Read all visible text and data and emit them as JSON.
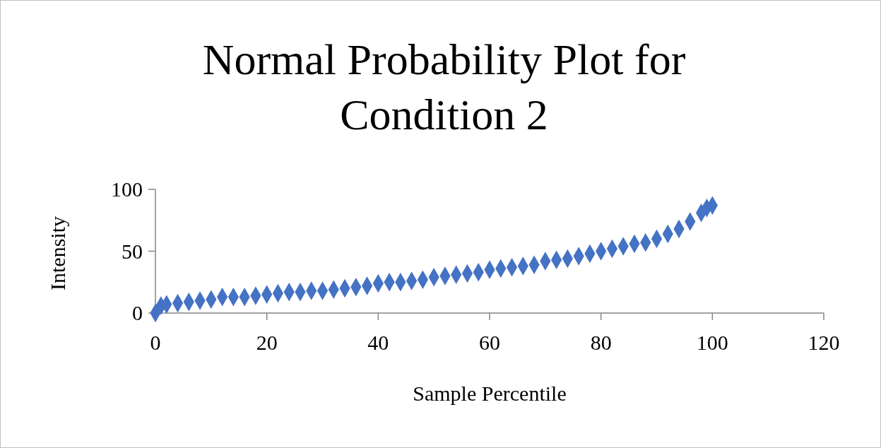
{
  "chart_data": {
    "type": "scatter",
    "title": "Normal Probability Plot for Condition 2",
    "xlabel": "Sample Percentile",
    "ylabel": "Intensity",
    "x": [
      0,
      1,
      2,
      4,
      6,
      8,
      10,
      12,
      14,
      16,
      18,
      20,
      22,
      24,
      26,
      28,
      30,
      32,
      34,
      36,
      38,
      40,
      42,
      44,
      46,
      48,
      50,
      52,
      54,
      56,
      58,
      60,
      62,
      64,
      66,
      68,
      70,
      72,
      74,
      76,
      78,
      80,
      82,
      84,
      86,
      88,
      90,
      92,
      94,
      96,
      98,
      99,
      100
    ],
    "series": [
      {
        "color": "#4472c4",
        "values": [
          0,
          6,
          7,
          8,
          9,
          10,
          11,
          13,
          13,
          13,
          14,
          15,
          16,
          17,
          17,
          18,
          18,
          19,
          20,
          21,
          22,
          24,
          25,
          25,
          26,
          27,
          29,
          30,
          31,
          32,
          33,
          35,
          36,
          37,
          38,
          39,
          42,
          43,
          44,
          46,
          48,
          50,
          52,
          54,
          56,
          57,
          60,
          64,
          68,
          74,
          81,
          85,
          87
        ]
      }
    ],
    "xlim": [
      0,
      120
    ],
    "xticks": [
      0,
      20,
      40,
      60,
      80,
      100,
      120
    ],
    "ylim": [
      0,
      100
    ],
    "yticks": [
      0,
      50,
      100
    ],
    "marker": "diamond",
    "grid": false
  }
}
